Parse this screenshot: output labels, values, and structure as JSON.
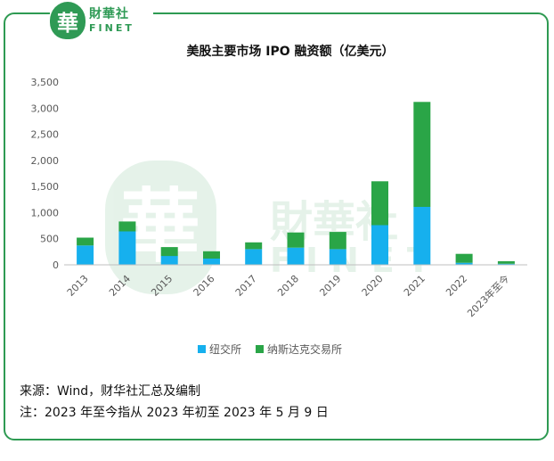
{
  "brand": {
    "seal_char": "華",
    "name_cn": "財華社",
    "name_en": "FINET"
  },
  "chart_data": {
    "type": "bar",
    "stacked": true,
    "title": "美股主要市场 IPO 融资额（亿美元）",
    "categories": [
      "2013",
      "2014",
      "2015",
      "2016",
      "2017",
      "2018",
      "2019",
      "2020",
      "2021",
      "2022",
      "2023年至今"
    ],
    "series": [
      {
        "name": "纽交所",
        "color": "#16b0ee",
        "values": [
          370,
          640,
          170,
          120,
          300,
          330,
          300,
          760,
          1110,
          40,
          20
        ]
      },
      {
        "name": "纳斯达克交易所",
        "color": "#2aa547",
        "values": [
          150,
          190,
          170,
          140,
          130,
          290,
          330,
          840,
          2010,
          170,
          50
        ]
      }
    ],
    "yticks": [
      0,
      500,
      1000,
      1500,
      2000,
      2500,
      3000,
      3500
    ],
    "ytick_labels": [
      "0",
      "500",
      "1,000",
      "1,500",
      "2,000",
      "2,500",
      "3,000",
      "3,500"
    ],
    "ylim": [
      0,
      3500
    ],
    "grid": false,
    "legend": "bottom"
  },
  "footer": {
    "source": "来源：Wind，财华社汇总及编制",
    "note": "注：2023 年至今指从 2023 年初至 2023 年 5 月 9 日"
  },
  "colors": {
    "border": "#2e9a52",
    "axis": "#bfbfbf",
    "text": "#595959"
  }
}
